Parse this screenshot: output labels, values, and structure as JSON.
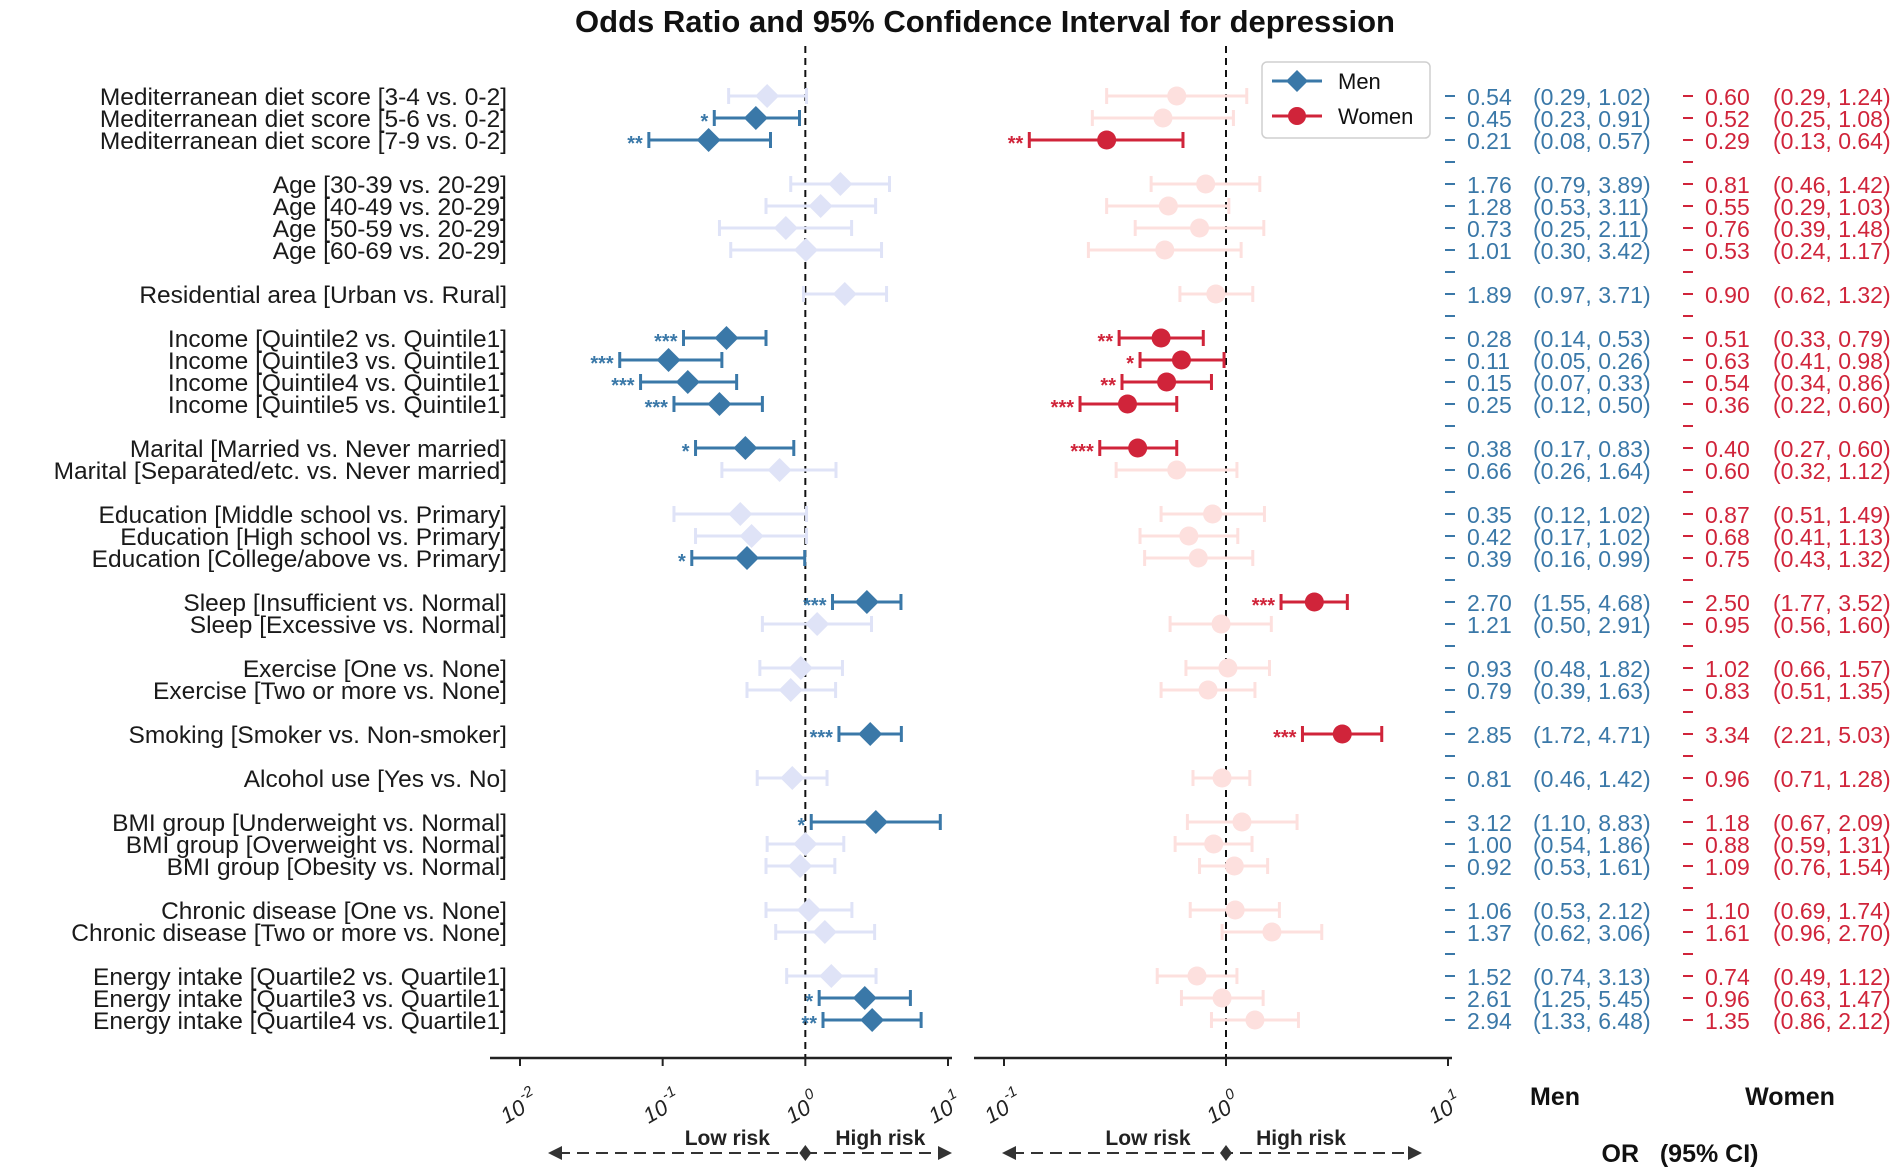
{
  "chart_data": {
    "type": "forest",
    "title": "Odds Ratio and 95% Confidence Interval for depression",
    "scale": "log",
    "axes": {
      "men": {
        "xlim": [
          0.01,
          10
        ],
        "ticks": [
          {
            "value": 0.01,
            "base": "10",
            "exp": "-2"
          },
          {
            "value": 0.1,
            "base": "10",
            "exp": "-1"
          },
          {
            "value": 1,
            "base": "10",
            "exp": "0"
          },
          {
            "value": 10,
            "base": "10",
            "exp": "1"
          }
        ]
      },
      "women": {
        "xlim": [
          0.1,
          10
        ],
        "ticks": [
          {
            "value": 0.1,
            "base": "10",
            "exp": "-1"
          },
          {
            "value": 1,
            "base": "10",
            "exp": "0"
          },
          {
            "value": 10,
            "base": "10",
            "exp": "1"
          }
        ]
      }
    },
    "reference_line": 1,
    "legend": {
      "position": "top-right",
      "entries": [
        {
          "name": "Men",
          "color": "#3a78a8",
          "marker": "diamond"
        },
        {
          "name": "Women",
          "color": "#d0243a",
          "marker": "circle"
        }
      ]
    },
    "risk_labels": {
      "low": "Low risk",
      "high": "High risk"
    },
    "table_headers": {
      "men": "Men",
      "women": "Women",
      "ci": "OR   (95% CI)"
    },
    "colors": {
      "men": "#3a78a8",
      "women": "#d0243a",
      "men_faded": "#dfe3f7",
      "women_faded": "#fde0de"
    },
    "rows": [
      {
        "label": "Mediterranean diet score [3-4 vs. 0-2]",
        "slot": 0,
        "men": {
          "or": 0.54,
          "lo": 0.29,
          "hi": 1.02,
          "stars": "",
          "text": "0.54",
          "ci": "(0.29, 1.02)"
        },
        "women": {
          "or": 0.6,
          "lo": 0.29,
          "hi": 1.24,
          "stars": "",
          "text": "0.60",
          "ci": "(0.29, 1.24)"
        }
      },
      {
        "label": "Mediterranean diet score [5-6 vs. 0-2]",
        "slot": 1,
        "men": {
          "or": 0.45,
          "lo": 0.23,
          "hi": 0.91,
          "stars": "*",
          "text": "0.45",
          "ci": "(0.23, 0.91)"
        },
        "women": {
          "or": 0.52,
          "lo": 0.25,
          "hi": 1.08,
          "stars": "",
          "text": "0.52",
          "ci": "(0.25, 1.08)"
        }
      },
      {
        "label": "Mediterranean diet score [7-9 vs. 0-2]",
        "slot": 2,
        "men": {
          "or": 0.21,
          "lo": 0.08,
          "hi": 0.57,
          "stars": "**",
          "text": "0.21",
          "ci": "(0.08, 0.57)"
        },
        "women": {
          "or": 0.29,
          "lo": 0.13,
          "hi": 0.64,
          "stars": "**",
          "text": "0.29",
          "ci": "(0.13, 0.64)"
        }
      },
      {
        "label": "Age [30-39 vs. 20-29]",
        "slot": 4,
        "men": {
          "or": 1.76,
          "lo": 0.79,
          "hi": 3.89,
          "stars": "",
          "text": "1.76",
          "ci": "(0.79, 3.89)"
        },
        "women": {
          "or": 0.81,
          "lo": 0.46,
          "hi": 1.42,
          "stars": "",
          "text": "0.81",
          "ci": "(0.46, 1.42)"
        }
      },
      {
        "label": "Age [40-49 vs. 20-29]",
        "slot": 5,
        "men": {
          "or": 1.28,
          "lo": 0.53,
          "hi": 3.11,
          "stars": "",
          "text": "1.28",
          "ci": "(0.53, 3.11)"
        },
        "women": {
          "or": 0.55,
          "lo": 0.29,
          "hi": 1.03,
          "stars": "",
          "text": "0.55",
          "ci": "(0.29, 1.03)"
        }
      },
      {
        "label": "Age [50-59 vs. 20-29]",
        "slot": 6,
        "men": {
          "or": 0.73,
          "lo": 0.25,
          "hi": 2.11,
          "stars": "",
          "text": "0.73",
          "ci": "(0.25, 2.11)"
        },
        "women": {
          "or": 0.76,
          "lo": 0.39,
          "hi": 1.48,
          "stars": "",
          "text": "0.76",
          "ci": "(0.39, 1.48)"
        }
      },
      {
        "label": "Age [60-69 vs. 20-29]",
        "slot": 7,
        "men": {
          "or": 1.01,
          "lo": 0.3,
          "hi": 3.42,
          "stars": "",
          "text": "1.01",
          "ci": "(0.30, 3.42)"
        },
        "women": {
          "or": 0.53,
          "lo": 0.24,
          "hi": 1.17,
          "stars": "",
          "text": "0.53",
          "ci": "(0.24, 1.17)"
        }
      },
      {
        "label": "Residential area [Urban vs. Rural]",
        "slot": 9,
        "men": {
          "or": 1.89,
          "lo": 0.97,
          "hi": 3.71,
          "stars": "",
          "text": "1.89",
          "ci": "(0.97, 3.71)"
        },
        "women": {
          "or": 0.9,
          "lo": 0.62,
          "hi": 1.32,
          "stars": "",
          "text": "0.90",
          "ci": "(0.62, 1.32)"
        }
      },
      {
        "label": "Income [Quintile2 vs. Quintile1]",
        "slot": 11,
        "men": {
          "or": 0.28,
          "lo": 0.14,
          "hi": 0.53,
          "stars": "***",
          "text": "0.28",
          "ci": "(0.14, 0.53)"
        },
        "women": {
          "or": 0.51,
          "lo": 0.33,
          "hi": 0.79,
          "stars": "**",
          "text": "0.51",
          "ci": "(0.33, 0.79)"
        }
      },
      {
        "label": "Income [Quintile3 vs. Quintile1]",
        "slot": 12,
        "men": {
          "or": 0.11,
          "lo": 0.05,
          "hi": 0.26,
          "stars": "***",
          "text": "0.11",
          "ci": "(0.05, 0.26)"
        },
        "women": {
          "or": 0.63,
          "lo": 0.41,
          "hi": 0.98,
          "stars": "*",
          "text": "0.63",
          "ci": "(0.41, 0.98)"
        }
      },
      {
        "label": "Income [Quintile4 vs. Quintile1]",
        "slot": 13,
        "men": {
          "or": 0.15,
          "lo": 0.07,
          "hi": 0.33,
          "stars": "***",
          "text": "0.15",
          "ci": "(0.07, 0.33)"
        },
        "women": {
          "or": 0.54,
          "lo": 0.34,
          "hi": 0.86,
          "stars": "**",
          "text": "0.54",
          "ci": "(0.34, 0.86)"
        }
      },
      {
        "label": "Income [Quintile5 vs. Quintile1]",
        "slot": 14,
        "men": {
          "or": 0.25,
          "lo": 0.12,
          "hi": 0.5,
          "stars": "***",
          "text": "0.25",
          "ci": "(0.12, 0.50)"
        },
        "women": {
          "or": 0.36,
          "lo": 0.22,
          "hi": 0.6,
          "stars": "***",
          "text": "0.36",
          "ci": "(0.22, 0.60)"
        }
      },
      {
        "label": "Marital [Married vs. Never married]",
        "slot": 16,
        "men": {
          "or": 0.38,
          "lo": 0.17,
          "hi": 0.83,
          "stars": "*",
          "text": "0.38",
          "ci": "(0.17, 0.83)"
        },
        "women": {
          "or": 0.4,
          "lo": 0.27,
          "hi": 0.6,
          "stars": "***",
          "text": "0.40",
          "ci": "(0.27, 0.60)"
        }
      },
      {
        "label": "Marital [Separated/etc. vs. Never married]",
        "slot": 17,
        "men": {
          "or": 0.66,
          "lo": 0.26,
          "hi": 1.64,
          "stars": "",
          "text": "0.66",
          "ci": "(0.26, 1.64)"
        },
        "women": {
          "or": 0.6,
          "lo": 0.32,
          "hi": 1.12,
          "stars": "",
          "text": "0.60",
          "ci": "(0.32, 1.12)"
        }
      },
      {
        "label": "Education [Middle school vs. Primary]",
        "slot": 19,
        "men": {
          "or": 0.35,
          "lo": 0.12,
          "hi": 1.02,
          "stars": "",
          "text": "0.35",
          "ci": "(0.12, 1.02)"
        },
        "women": {
          "or": 0.87,
          "lo": 0.51,
          "hi": 1.49,
          "stars": "",
          "text": "0.87",
          "ci": "(0.51, 1.49)"
        }
      },
      {
        "label": "Education [High school vs. Primary]",
        "slot": 20,
        "men": {
          "or": 0.42,
          "lo": 0.17,
          "hi": 1.02,
          "stars": "",
          "text": "0.42",
          "ci": "(0.17, 1.02)"
        },
        "women": {
          "or": 0.68,
          "lo": 0.41,
          "hi": 1.13,
          "stars": "",
          "text": "0.68",
          "ci": "(0.41, 1.13)"
        }
      },
      {
        "label": "Education [College/above vs. Primary]",
        "slot": 21,
        "men": {
          "or": 0.39,
          "lo": 0.16,
          "hi": 0.99,
          "stars": "*",
          "text": "0.39",
          "ci": "(0.16, 0.99)"
        },
        "women": {
          "or": 0.75,
          "lo": 0.43,
          "hi": 1.32,
          "stars": "",
          "text": "0.75",
          "ci": "(0.43, 1.32)"
        }
      },
      {
        "label": "Sleep [Insufficient vs. Normal]",
        "slot": 23,
        "men": {
          "or": 2.7,
          "lo": 1.55,
          "hi": 4.68,
          "stars": "***",
          "text": "2.70",
          "ci": "(1.55, 4.68)"
        },
        "women": {
          "or": 2.5,
          "lo": 1.77,
          "hi": 3.52,
          "stars": "***",
          "text": "2.50",
          "ci": "(1.77, 3.52)"
        }
      },
      {
        "label": "Sleep [Excessive vs. Normal]",
        "slot": 24,
        "men": {
          "or": 1.21,
          "lo": 0.5,
          "hi": 2.91,
          "stars": "",
          "text": "1.21",
          "ci": "(0.50, 2.91)"
        },
        "women": {
          "or": 0.95,
          "lo": 0.56,
          "hi": 1.6,
          "stars": "",
          "text": "0.95",
          "ci": "(0.56, 1.60)"
        }
      },
      {
        "label": "Exercise [One vs. None]",
        "slot": 26,
        "men": {
          "or": 0.93,
          "lo": 0.48,
          "hi": 1.82,
          "stars": "",
          "text": "0.93",
          "ci": "(0.48, 1.82)"
        },
        "women": {
          "or": 1.02,
          "lo": 0.66,
          "hi": 1.57,
          "stars": "",
          "text": "1.02",
          "ci": "(0.66, 1.57)"
        }
      },
      {
        "label": "Exercise [Two or more vs. None]",
        "slot": 27,
        "men": {
          "or": 0.79,
          "lo": 0.39,
          "hi": 1.63,
          "stars": "",
          "text": "0.79",
          "ci": "(0.39, 1.63)"
        },
        "women": {
          "or": 0.83,
          "lo": 0.51,
          "hi": 1.35,
          "stars": "",
          "text": "0.83",
          "ci": "(0.51, 1.35)"
        }
      },
      {
        "label": "Smoking [Smoker vs. Non-smoker]",
        "slot": 29,
        "men": {
          "or": 2.85,
          "lo": 1.72,
          "hi": 4.71,
          "stars": "***",
          "text": "2.85",
          "ci": "(1.72, 4.71)"
        },
        "women": {
          "or": 3.34,
          "lo": 2.21,
          "hi": 5.03,
          "stars": "***",
          "text": "3.34",
          "ci": "(2.21, 5.03)"
        }
      },
      {
        "label": "Alcohol use [Yes vs. No]",
        "slot": 31,
        "men": {
          "or": 0.81,
          "lo": 0.46,
          "hi": 1.42,
          "stars": "",
          "text": "0.81",
          "ci": "(0.46, 1.42)"
        },
        "women": {
          "or": 0.96,
          "lo": 0.71,
          "hi": 1.28,
          "stars": "",
          "text": "0.96",
          "ci": "(0.71, 1.28)"
        }
      },
      {
        "label": "BMI group [Underweight vs. Normal]",
        "slot": 33,
        "men": {
          "or": 3.12,
          "lo": 1.1,
          "hi": 8.83,
          "stars": "*",
          "text": "3.12",
          "ci": "(1.10, 8.83)"
        },
        "women": {
          "or": 1.18,
          "lo": 0.67,
          "hi": 2.09,
          "stars": "",
          "text": "1.18",
          "ci": "(0.67, 2.09)"
        }
      },
      {
        "label": "BMI group [Overweight vs. Normal]",
        "slot": 34,
        "men": {
          "or": 1.0,
          "lo": 0.54,
          "hi": 1.86,
          "stars": "",
          "text": "1.00",
          "ci": "(0.54, 1.86)"
        },
        "women": {
          "or": 0.88,
          "lo": 0.59,
          "hi": 1.31,
          "stars": "",
          "text": "0.88",
          "ci": "(0.59, 1.31)"
        }
      },
      {
        "label": "BMI group [Obesity vs. Normal]",
        "slot": 35,
        "men": {
          "or": 0.92,
          "lo": 0.53,
          "hi": 1.61,
          "stars": "",
          "text": "0.92",
          "ci": "(0.53, 1.61)"
        },
        "women": {
          "or": 1.09,
          "lo": 0.76,
          "hi": 1.54,
          "stars": "",
          "text": "1.09",
          "ci": "(0.76, 1.54)"
        }
      },
      {
        "label": "Chronic disease  [One vs. None]",
        "slot": 37,
        "men": {
          "or": 1.06,
          "lo": 0.53,
          "hi": 2.12,
          "stars": "",
          "text": "1.06",
          "ci": "(0.53, 2.12)"
        },
        "women": {
          "or": 1.1,
          "lo": 0.69,
          "hi": 1.74,
          "stars": "",
          "text": "1.10",
          "ci": "(0.69, 1.74)"
        }
      },
      {
        "label": "Chronic disease [Two or more vs. None]",
        "slot": 38,
        "men": {
          "or": 1.37,
          "lo": 0.62,
          "hi": 3.06,
          "stars": "",
          "text": "1.37",
          "ci": "(0.62, 3.06)"
        },
        "women": {
          "or": 1.61,
          "lo": 0.96,
          "hi": 2.7,
          "stars": "",
          "text": "1.61",
          "ci": "(0.96, 2.70)"
        }
      },
      {
        "label": "Energy intake [Quartile2 vs. Quartile1]",
        "slot": 40,
        "men": {
          "or": 1.52,
          "lo": 0.74,
          "hi": 3.13,
          "stars": "",
          "text": "1.52",
          "ci": "(0.74, 3.13)"
        },
        "women": {
          "or": 0.74,
          "lo": 0.49,
          "hi": 1.12,
          "stars": "",
          "text": "0.74",
          "ci": "(0.49, 1.12)"
        }
      },
      {
        "label": "Energy intake [Quartile3 vs. Quartile1]",
        "slot": 41,
        "men": {
          "or": 2.61,
          "lo": 1.25,
          "hi": 5.45,
          "stars": "*",
          "text": "2.61",
          "ci": "(1.25, 5.45)"
        },
        "women": {
          "or": 0.96,
          "lo": 0.63,
          "hi": 1.47,
          "stars": "",
          "text": "0.96",
          "ci": "(0.63, 1.47)"
        }
      },
      {
        "label": "Energy intake [Quartile4 vs. Quartile1]",
        "slot": 42,
        "men": {
          "or": 2.94,
          "lo": 1.33,
          "hi": 6.48,
          "stars": "**",
          "text": "2.94",
          "ci": "(1.33, 6.48)"
        },
        "women": {
          "or": 1.35,
          "lo": 0.86,
          "hi": 2.12,
          "stars": "",
          "text": "1.35",
          "ci": "(0.86, 2.12)"
        }
      }
    ]
  }
}
